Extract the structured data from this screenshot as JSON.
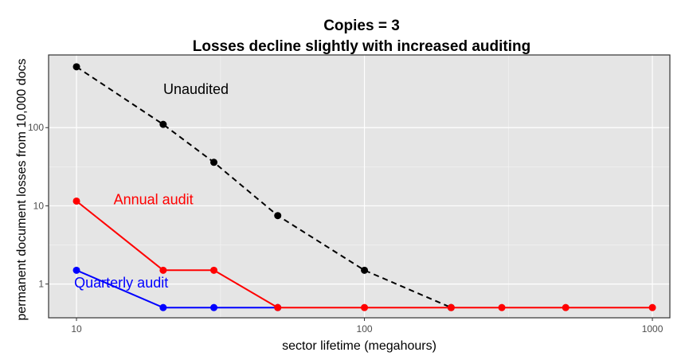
{
  "chart_data": {
    "type": "line",
    "title": "Copies = 3",
    "subtitle": "Losses decline slightly with increased auditing",
    "xlabel": "sector lifetime (megahours)",
    "ylabel": "permanent document losses from 10,000 docs",
    "x_scale": "log",
    "y_scale": "log",
    "xlim": [
      8,
      1150
    ],
    "ylim": [
      0.37,
      850
    ],
    "x_ticks": [
      10,
      100,
      1000
    ],
    "x_tick_labels": [
      "10",
      "100",
      "1000"
    ],
    "y_ticks": [
      1,
      10,
      100
    ],
    "y_tick_labels": [
      "1",
      "10",
      "100"
    ],
    "grid": true,
    "background": "#e5e5e5",
    "series": [
      {
        "name": "Unaudited",
        "color": "#000000",
        "dash": true,
        "x": [
          10,
          20,
          30,
          50,
          100,
          200
        ],
        "y": [
          600,
          110,
          36,
          7.5,
          1.5,
          0.5
        ]
      },
      {
        "name": "Annual audit",
        "color": "#ff0000",
        "dash": false,
        "x": [
          10,
          20,
          30,
          50,
          100,
          200,
          300,
          500,
          1000
        ],
        "y": [
          11.5,
          1.5,
          1.5,
          0.5,
          0.5,
          0.5,
          0.5,
          0.5,
          0.5
        ]
      },
      {
        "name": "Quarterly audit",
        "color": "#0000ff",
        "dash": false,
        "x": [
          10,
          20,
          30,
          50
        ],
        "y": [
          1.5,
          0.5,
          0.5,
          0.5
        ]
      }
    ],
    "annotations": [
      {
        "text": "Unaudited",
        "x": 26,
        "y": 270,
        "color": "#000000"
      },
      {
        "text": "Annual audit",
        "x": 18.5,
        "y": 10.5,
        "color": "#ff0000"
      },
      {
        "text": "Quarterly audit",
        "x": 14.3,
        "y": 0.9,
        "color": "#0000ff"
      }
    ]
  }
}
